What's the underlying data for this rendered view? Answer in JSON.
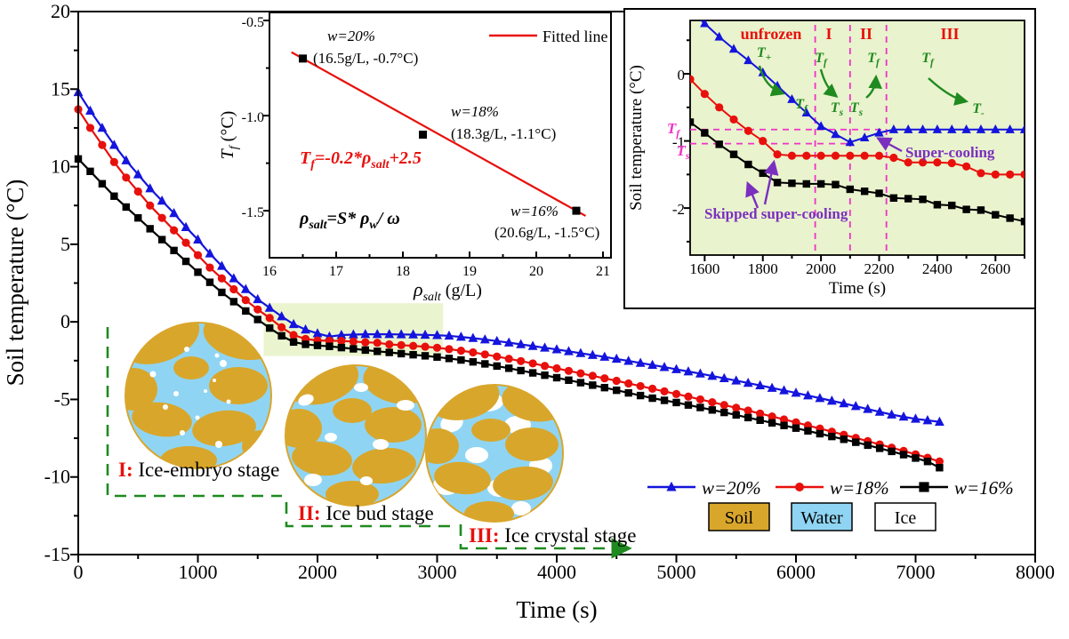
{
  "colors": {
    "blue": "#1414dd",
    "red": "#e8100c",
    "black": "#000000",
    "green": "#1f8a1f",
    "magenta": "#f032c8",
    "purple": "#7b2fbf",
    "soil": "#d9a62c",
    "water": "#8fd5f3",
    "ice": "#ffffff",
    "inset_bg": "#e9f3cd",
    "highlight": "#eaf5cf"
  },
  "main": {
    "ylabel": "Soil temperature (°C)",
    "xlabel": "Time (s)",
    "xticks": [
      0,
      1000,
      2000,
      3000,
      4000,
      5000,
      6000,
      7000,
      8000
    ],
    "xtick_labels": [
      "0",
      "1000",
      "2000",
      "3000",
      "4000",
      "5000",
      "6000",
      "7000",
      "8000"
    ],
    "xminor": [
      500,
      1500,
      2500,
      3500,
      4500,
      5500,
      6500,
      7500
    ],
    "yticks": [
      20,
      15,
      10,
      5,
      0,
      -5,
      -10,
      -15
    ],
    "ytick_labels": [
      "20",
      "15",
      "10",
      "5",
      "0",
      "-5",
      "-10",
      "-15"
    ],
    "yminor": [
      17.5,
      12.5,
      7.5,
      2.5,
      -2.5,
      -7.5,
      -12.5
    ]
  },
  "legend": {
    "materials": [
      {
        "label": "Soil",
        "color": "soil"
      },
      {
        "label": "Water",
        "color": "water"
      },
      {
        "label": "Ice",
        "color": "ice"
      }
    ]
  },
  "stages": [
    {
      "numeral": "I:",
      "label": " Ice-embryo stage"
    },
    {
      "numeral": "II:",
      "label": " Ice bud stage"
    },
    {
      "numeral": "III:",
      "label": " Ice crystal stage"
    }
  ],
  "fit_inset": {
    "ylabel": {
      "m": "T",
      "s": "f",
      "rest": " (°C)"
    },
    "xlabel": {
      "m": "ρ",
      "s": "salt",
      "rest": " (g/L)"
    },
    "legend_label": "Fitted line",
    "xticks": [
      16,
      17,
      18,
      19,
      20,
      21
    ],
    "xtick_labels": [
      "16",
      "17",
      "18",
      "19",
      "20",
      "21"
    ],
    "xminor": [
      16.5,
      17.5,
      18.5,
      19.5,
      20.5
    ],
    "yticks": [
      -0.5,
      -1.0,
      -1.5
    ],
    "ytick_labels": [
      "-0.5",
      "-1.0",
      "-1.5"
    ],
    "yminor": [
      -0.75,
      -1.25
    ],
    "eq1": {
      "p1": "T",
      "s1": "f",
      "p2": "=-0.2*ρ",
      "s2": "salt",
      "p3": "+2.5"
    },
    "eq2": {
      "p1": "ρ",
      "s1": "salt",
      "p2": "=S* ρ",
      "s2": "w",
      "p3": "/ ω"
    }
  },
  "zoom_inset": {
    "ylabel": "Soil temperature (°C)",
    "xlabel": "Time (s)",
    "xticks": [
      1600,
      1800,
      2000,
      2200,
      2400,
      2600
    ],
    "xtick_labels": [
      "1600",
      "1800",
      "2000",
      "2200",
      "2400",
      "2600"
    ],
    "xminor": [
      1700,
      1900,
      2100,
      2300,
      2500,
      2700
    ],
    "yticks": [
      0,
      -1,
      -2
    ],
    "ytick_labels": [
      "0",
      "-1",
      "-2"
    ],
    "yminor": [
      0.5,
      -0.5,
      -1.5,
      -2.5
    ],
    "guides": {
      "tf_value": -0.83,
      "ts_value": -1.04,
      "vlines": [
        1980,
        2100,
        2225
      ]
    },
    "regions": {
      "unfrozen": "unfrozen",
      "r1": "I",
      "r2": "II",
      "r3": "III"
    },
    "labels": {
      "tplus": {
        "m": "T",
        "s": "+"
      },
      "tf_curve": {
        "m": "T",
        "s": "f"
      },
      "tf_r1": {
        "m": "T",
        "s": "f"
      },
      "ts_r1": {
        "m": "T",
        "s": "s"
      },
      "ts_r2": {
        "m": "T",
        "s": "s"
      },
      "tf_r2": {
        "m": "T",
        "s": "f"
      },
      "tf_r3": {
        "m": "T",
        "s": "f"
      },
      "tminus": {
        "m": "T",
        "s": "-"
      },
      "mag_tf": {
        "m": "T",
        "s": "f"
      },
      "mag_ts": {
        "m": "T",
        "s": "s"
      },
      "supercooling": "Super-cooling",
      "skipped": "Skipped super-cooling"
    }
  },
  "chart_data": [
    {
      "type": "line",
      "title": "Soil temperature vs time for three water contents",
      "xlabel": "Time (s)",
      "ylabel": "Soil temperature (°C)",
      "xlim": [
        0,
        8000
      ],
      "ylim": [
        -15,
        20
      ],
      "grid": false,
      "legend_position": "lower right",
      "x": [
        0,
        100,
        200,
        300,
        400,
        500,
        600,
        700,
        800,
        900,
        1000,
        1100,
        1200,
        1300,
        1400,
        1500,
        1600,
        1700,
        1800,
        1900,
        2000,
        2100,
        2200,
        2300,
        2400,
        2500,
        2600,
        2700,
        2800,
        2900,
        3000,
        3100,
        3200,
        3300,
        3400,
        3500,
        3600,
        3700,
        3800,
        3900,
        4000,
        4100,
        4200,
        4300,
        4400,
        4500,
        4600,
        4700,
        4800,
        4900,
        5000,
        5100,
        5200,
        5300,
        5400,
        5500,
        5600,
        5700,
        5800,
        5900,
        6000,
        6100,
        6200,
        6300,
        6400,
        6500,
        6600,
        6700,
        6800,
        6900,
        7000,
        7100,
        7200
      ],
      "series": [
        {
          "name": "w=20%",
          "color": "blue",
          "marker": "triangle",
          "values": [
            14.8,
            13.6,
            12.5,
            11.4,
            10.4,
            9.5,
            8.6,
            7.8,
            7.0,
            6.1,
            5.3,
            4.4,
            3.6,
            2.8,
            2.1,
            1.45,
            0.9,
            0.35,
            -0.15,
            -0.5,
            -0.75,
            -0.95,
            -0.85,
            -0.82,
            -0.8,
            -0.8,
            -0.8,
            -0.81,
            -0.82,
            -0.84,
            -0.86,
            -0.9,
            -0.97,
            -1.05,
            -1.14,
            -1.24,
            -1.34,
            -1.45,
            -1.56,
            -1.67,
            -1.78,
            -1.9,
            -2.02,
            -2.14,
            -2.26,
            -2.39,
            -2.52,
            -2.65,
            -2.78,
            -2.92,
            -3.06,
            -3.2,
            -3.34,
            -3.49,
            -3.64,
            -3.79,
            -3.94,
            -4.1,
            -4.26,
            -4.42,
            -4.58,
            -4.75,
            -4.92,
            -5.09,
            -5.26,
            -5.44,
            -5.62,
            -5.8,
            -5.98,
            -6.12,
            -6.25,
            -6.35,
            -6.45
          ]
        },
        {
          "name": "w=18%",
          "color": "red",
          "marker": "circle",
          "values": [
            13.7,
            12.5,
            11.4,
            10.3,
            9.3,
            8.4,
            7.5,
            6.7,
            5.9,
            5.1,
            4.3,
            3.5,
            2.8,
            2.1,
            1.4,
            0.8,
            0.25,
            -0.35,
            -0.85,
            -1.1,
            -1.2,
            -1.22,
            -1.23,
            -1.27,
            -1.32,
            -1.35,
            -1.45,
            -1.5,
            -1.55,
            -1.6,
            -1.67,
            -1.76,
            -1.86,
            -1.97,
            -2.1,
            -2.24,
            -2.38,
            -2.53,
            -2.68,
            -2.84,
            -3.0,
            -3.16,
            -3.32,
            -3.48,
            -3.64,
            -3.8,
            -3.97,
            -4.14,
            -4.31,
            -4.48,
            -4.65,
            -4.82,
            -5.0,
            -5.18,
            -5.36,
            -5.54,
            -5.72,
            -5.91,
            -6.1,
            -6.29,
            -6.48,
            -6.68,
            -6.88,
            -7.08,
            -7.28,
            -7.48,
            -7.69,
            -7.9,
            -8.11,
            -8.32,
            -8.54,
            -8.76,
            -9.0
          ]
        },
        {
          "name": "w=16%",
          "color": "black",
          "marker": "square",
          "values": [
            10.5,
            9.7,
            8.9,
            8.1,
            7.4,
            6.7,
            6.0,
            5.3,
            4.6,
            3.9,
            3.2,
            2.55,
            1.9,
            1.3,
            0.7,
            0.15,
            -0.4,
            -0.9,
            -1.3,
            -1.45,
            -1.52,
            -1.58,
            -1.66,
            -1.74,
            -1.82,
            -1.9,
            -1.97,
            -2.05,
            -2.12,
            -2.19,
            -2.27,
            -2.36,
            -2.46,
            -2.58,
            -2.71,
            -2.85,
            -2.99,
            -3.14,
            -3.29,
            -3.44,
            -3.6,
            -3.76,
            -3.92,
            -4.08,
            -4.24,
            -4.41,
            -4.58,
            -4.75,
            -4.92,
            -5.06,
            -5.2,
            -5.36,
            -5.52,
            -5.68,
            -5.84,
            -6.0,
            -6.17,
            -6.34,
            -6.51,
            -6.68,
            -6.85,
            -7.03,
            -7.21,
            -7.39,
            -7.57,
            -7.76,
            -7.95,
            -8.15,
            -8.35,
            -8.56,
            -8.78,
            -9.0,
            -9.4
          ]
        }
      ]
    },
    {
      "type": "scatter",
      "title": "Freezing temperature vs salt solution density",
      "xlabel": "ρ_salt (g/L)",
      "ylabel": "T_f (°C)",
      "xlim": [
        16,
        21
      ],
      "ylim": [
        -1.75,
        -0.45
      ],
      "points": [
        {
          "x": 16.5,
          "y": -0.7,
          "w": "w=20%",
          "coord": "(16.5g/L, -0.7°C)"
        },
        {
          "x": 18.3,
          "y": -1.1,
          "w": "w=18%",
          "coord": "(18.3g/L, -1.1°C)"
        },
        {
          "x": 20.6,
          "y": -1.5,
          "w": "w=16%",
          "coord": "(20.6g/L, -1.5°C)"
        }
      ],
      "fit": {
        "label": "Fitted line",
        "equation": "T_f = -0.2*ρ_salt + 2.5",
        "note": "ρ_salt = S*ρ_w/ω"
      }
    },
    {
      "type": "line",
      "title": "Zoomed soil temperature 1550-2700 s",
      "xlabel": "Time (s)",
      "ylabel": "Soil temperature (°C)",
      "xlim": [
        1550,
        2700
      ],
      "ylim": [
        -2.7,
        0.795
      ],
      "x": [
        1550,
        1600,
        1650,
        1700,
        1750,
        1800,
        1850,
        1900,
        1950,
        2000,
        2050,
        2100,
        2150,
        2200,
        2250,
        2300,
        2350,
        2400,
        2450,
        2500,
        2550,
        2600,
        2650,
        2700
      ],
      "series": [
        {
          "name": "w=20%",
          "color": "blue",
          "marker": "triangle",
          "values": [
            0.95,
            0.75,
            0.55,
            0.37,
            0.2,
            0.02,
            -0.18,
            -0.38,
            -0.58,
            -0.78,
            -0.9,
            -1.02,
            -0.95,
            -0.88,
            -0.83,
            -0.83,
            -0.83,
            -0.83,
            -0.83,
            -0.83,
            -0.83,
            -0.83,
            -0.83,
            -0.83
          ]
        },
        {
          "name": "w=18%",
          "color": "red",
          "marker": "circle",
          "values": [
            -0.08,
            -0.3,
            -0.5,
            -0.68,
            -0.85,
            -1.0,
            -1.2,
            -1.22,
            -1.22,
            -1.22,
            -1.22,
            -1.22,
            -1.22,
            -1.22,
            -1.25,
            -1.32,
            -1.32,
            -1.32,
            -1.33,
            -1.38,
            -1.48,
            -1.5,
            -1.5,
            -1.5
          ]
        },
        {
          "name": "w=16%",
          "color": "black",
          "marker": "square",
          "values": [
            -0.72,
            -0.88,
            -1.05,
            -1.2,
            -1.35,
            -1.48,
            -1.62,
            -1.63,
            -1.64,
            -1.64,
            -1.65,
            -1.72,
            -1.75,
            -1.78,
            -1.85,
            -1.86,
            -1.87,
            -1.95,
            -1.96,
            -2.02,
            -2.03,
            -2.1,
            -2.15,
            -2.2
          ]
        }
      ]
    }
  ]
}
